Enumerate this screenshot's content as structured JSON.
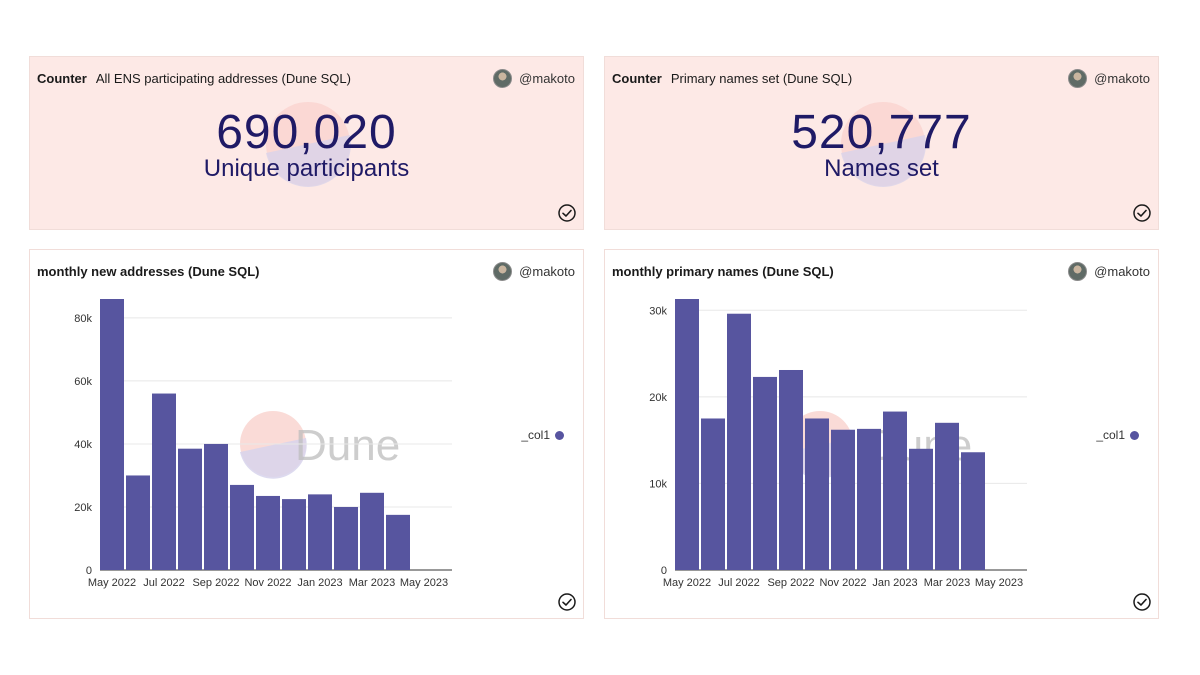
{
  "colors": {
    "bar": "#57559f",
    "counter_bg": "#fde9e6",
    "counter_text": "#1f1a66",
    "grid": "#e8e8e8"
  },
  "counters": [
    {
      "type_label": "Counter",
      "title": "All ENS participating addresses (Dune SQL)",
      "author": "@makoto",
      "value": "690,020",
      "label": "Unique participants"
    },
    {
      "type_label": "Counter",
      "title": "Primary names set (Dune SQL)",
      "author": "@makoto",
      "value": "520,777",
      "label": "Names set"
    }
  ],
  "charts": [
    {
      "title": "monthly new addresses (Dune SQL)",
      "author": "@makoto",
      "legend": "_col1",
      "watermark": "Dune"
    },
    {
      "title": "monthly primary names (Dune SQL)",
      "author": "@makoto",
      "legend": "_col1",
      "watermark": "Dune"
    }
  ],
  "chart_data": [
    {
      "type": "bar",
      "title": "monthly new addresses (Dune SQL)",
      "categories": [
        "May 2022",
        "Jun 2022",
        "Jul 2022",
        "Aug 2022",
        "Sep 2022",
        "Oct 2022",
        "Nov 2022",
        "Dec 2022",
        "Jan 2023",
        "Feb 2023",
        "Mar 2023",
        "Apr 2023",
        "May 2023"
      ],
      "x_tick_labels": [
        "May 2022",
        "Jul 2022",
        "Sep 2022",
        "Nov 2022",
        "Jan 2023",
        "Mar 2023",
        "May 2023"
      ],
      "y_tick_labels": [
        "0",
        "20k",
        "40k",
        "60k",
        "80k"
      ],
      "y_ticks": [
        0,
        20000,
        40000,
        60000,
        80000
      ],
      "series": [
        {
          "name": "_col1",
          "values": [
            86000,
            30000,
            56000,
            38500,
            40000,
            27000,
            23500,
            22500,
            24000,
            20000,
            24500,
            17500,
            0
          ]
        }
      ],
      "ylim": [
        0,
        86000
      ],
      "legend_position": "right",
      "grid": true
    },
    {
      "type": "bar",
      "title": "monthly primary names (Dune SQL)",
      "categories": [
        "May 2022",
        "Jun 2022",
        "Jul 2022",
        "Aug 2022",
        "Sep 2022",
        "Oct 2022",
        "Nov 2022",
        "Dec 2022",
        "Jan 2023",
        "Feb 2023",
        "Mar 2023",
        "Apr 2023",
        "May 2023"
      ],
      "x_tick_labels": [
        "May 2022",
        "Jul 2022",
        "Sep 2022",
        "Nov 2022",
        "Jan 2023",
        "Mar 2023",
        "May 2023"
      ],
      "y_tick_labels": [
        "0",
        "10k",
        "20k",
        "30k"
      ],
      "y_ticks": [
        0,
        10000,
        20000,
        30000
      ],
      "series": [
        {
          "name": "_col1",
          "values": [
            31300,
            17500,
            29600,
            22300,
            23100,
            17500,
            16200,
            16300,
            18300,
            14000,
            17000,
            13600,
            0
          ]
        }
      ],
      "ylim": [
        0,
        31300
      ],
      "legend_position": "right",
      "grid": true
    }
  ]
}
